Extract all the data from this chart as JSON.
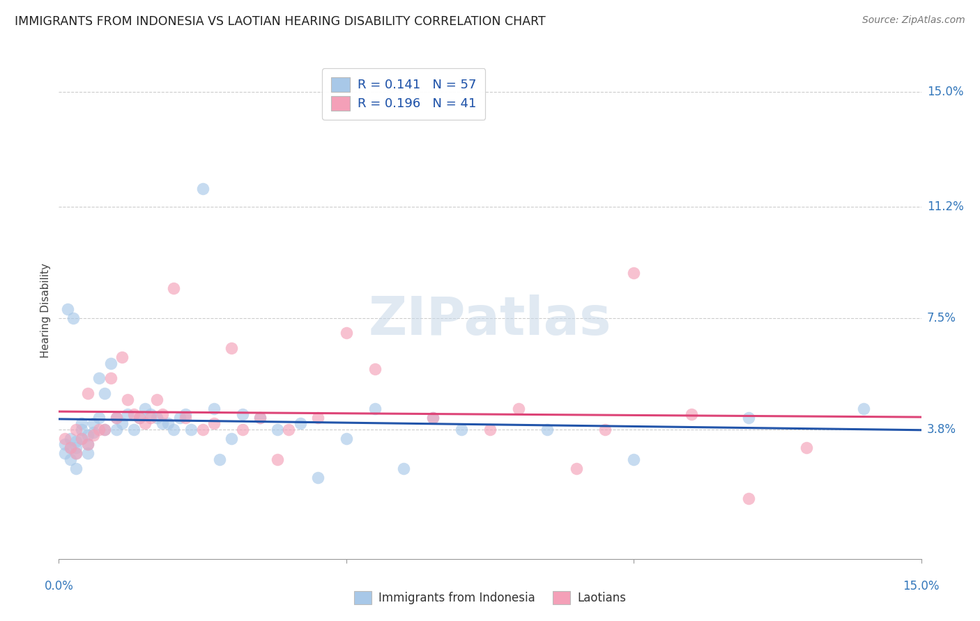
{
  "title": "IMMIGRANTS FROM INDONESIA VS LAOTIAN HEARING DISABILITY CORRELATION CHART",
  "source": "Source: ZipAtlas.com",
  "ylabel": "Hearing Disability",
  "ytick_labels": [
    "3.8%",
    "7.5%",
    "11.2%",
    "15.0%"
  ],
  "ytick_values": [
    3.8,
    7.5,
    11.2,
    15.0
  ],
  "xlim": [
    0.0,
    15.0
  ],
  "ylim": [
    -0.5,
    16.0
  ],
  "series1_label": "Immigrants from Indonesia",
  "series2_label": "Laotians",
  "series1_color": "#a8c8e8",
  "series2_color": "#f4a0b8",
  "series1_line_color": "#2255aa",
  "series2_line_color": "#dd4477",
  "watermark": "ZIPatlas",
  "r1": 0.141,
  "n1": 57,
  "r2": 0.196,
  "n2": 41,
  "series1_x": [
    0.1,
    0.1,
    0.2,
    0.2,
    0.2,
    0.3,
    0.3,
    0.3,
    0.3,
    0.4,
    0.4,
    0.4,
    0.5,
    0.5,
    0.5,
    0.6,
    0.6,
    0.7,
    0.7,
    0.8,
    0.8,
    0.9,
    1.0,
    1.0,
    1.1,
    1.2,
    1.3,
    1.4,
    1.5,
    1.6,
    1.7,
    1.8,
    1.9,
    2.0,
    2.1,
    2.2,
    2.3,
    2.5,
    2.7,
    2.8,
    3.0,
    3.2,
    3.5,
    3.8,
    4.2,
    4.5,
    5.0,
    5.5,
    6.0,
    6.5,
    7.0,
    8.5,
    10.0,
    12.0,
    14.0,
    0.15,
    0.25
  ],
  "series1_y": [
    3.0,
    3.3,
    2.8,
    3.2,
    3.5,
    2.5,
    3.0,
    3.2,
    3.4,
    3.5,
    3.8,
    4.0,
    3.0,
    3.3,
    3.6,
    3.7,
    4.0,
    4.2,
    5.5,
    3.8,
    5.0,
    6.0,
    3.8,
    4.2,
    4.0,
    4.3,
    3.8,
    4.2,
    4.5,
    4.3,
    4.2,
    4.0,
    4.0,
    3.8,
    4.2,
    4.3,
    3.8,
    11.8,
    4.5,
    2.8,
    3.5,
    4.3,
    4.2,
    3.8,
    4.0,
    2.2,
    3.5,
    4.5,
    2.5,
    4.2,
    3.8,
    3.8,
    2.8,
    4.2,
    4.5,
    7.8,
    7.5
  ],
  "series2_x": [
    0.1,
    0.2,
    0.3,
    0.3,
    0.4,
    0.5,
    0.5,
    0.6,
    0.7,
    0.8,
    0.9,
    1.0,
    1.1,
    1.2,
    1.3,
    1.4,
    1.5,
    1.6,
    1.7,
    1.8,
    2.0,
    2.2,
    2.5,
    2.7,
    3.0,
    3.2,
    3.5,
    3.8,
    4.0,
    4.5,
    5.0,
    5.5,
    6.5,
    7.5,
    8.0,
    9.0,
    9.5,
    10.0,
    11.0,
    12.0,
    13.0
  ],
  "series2_y": [
    3.5,
    3.2,
    3.0,
    3.8,
    3.5,
    3.3,
    5.0,
    3.6,
    3.8,
    3.8,
    5.5,
    4.2,
    6.2,
    4.8,
    4.3,
    4.2,
    4.0,
    4.2,
    4.8,
    4.3,
    8.5,
    4.2,
    3.8,
    4.0,
    6.5,
    3.8,
    4.2,
    2.8,
    3.8,
    4.2,
    7.0,
    5.8,
    4.2,
    3.8,
    4.5,
    2.5,
    3.8,
    9.0,
    4.3,
    1.5,
    3.2
  ]
}
